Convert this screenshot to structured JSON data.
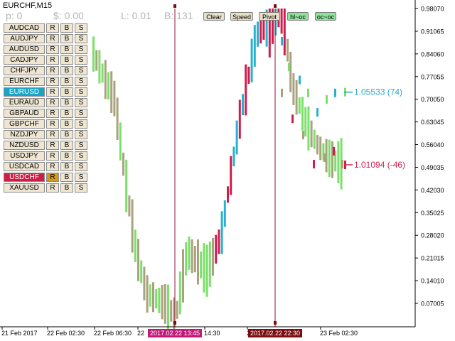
{
  "window": {
    "title": "EURCHF,M15"
  },
  "stats": {
    "p": "p: 0",
    "dollar": "$: 0.00",
    "l": "L: 0.01",
    "b": "B: 131"
  },
  "toolbar": [
    {
      "label": "Clear",
      "style": "beige"
    },
    {
      "label": "Speed",
      "style": "beige"
    },
    {
      "label": "Pivot",
      "style": "beige"
    },
    {
      "label": "hl~oc",
      "style": "green"
    },
    {
      "label": "oc~oc",
      "style": "green"
    }
  ],
  "symbols": [
    {
      "name": "AUDCAD",
      "state": ""
    },
    {
      "name": "AUDJPY",
      "state": ""
    },
    {
      "name": "AUDUSD",
      "state": ""
    },
    {
      "name": "CADJPY",
      "state": ""
    },
    {
      "name": "CHFJPY",
      "state": ""
    },
    {
      "name": "EURCHF",
      "state": ""
    },
    {
      "name": "EURUSD",
      "state": "blue"
    },
    {
      "name": "EURAUD",
      "state": ""
    },
    {
      "name": "GBPAUD",
      "state": ""
    },
    {
      "name": "GBPCHF",
      "state": ""
    },
    {
      "name": "NZDJPY",
      "state": ""
    },
    {
      "name": "NZDUSD",
      "state": ""
    },
    {
      "name": "USDJPY",
      "state": ""
    },
    {
      "name": "USDCAD",
      "state": ""
    },
    {
      "name": "USDCHF",
      "state": "red"
    },
    {
      "name": "XAUUSD",
      "state": ""
    }
  ],
  "row_buttons": {
    "r": "R",
    "b": "B",
    "s": "S"
  },
  "price_axis": {
    "labels": [
      "0.98070",
      "0.91065",
      "0.84060",
      "0.77055",
      "0.70050",
      "0.63045",
      "0.56040",
      "0.49035",
      "0.42030",
      "0.35025",
      "0.28020",
      "0.21015",
      "0.14010",
      "0.07005"
    ],
    "min": 0.0,
    "max": 0.9807
  },
  "time_axis": {
    "labels": [
      "21 Feb 2017",
      "22 Feb 02:30",
      "22 Feb 06:30",
      "22",
      "14:30",
      "22:30",
      "23 Feb 02:30"
    ]
  },
  "markers": [
    {
      "label": "2017.02.22 13:45",
      "color": "#c2187a"
    },
    {
      "label": "2017.02.22 22:30",
      "color": "#7a0e0e"
    }
  ],
  "series_labels": [
    {
      "text": "1.05533 (74)",
      "value": 0.7225,
      "color": "#2aa7c8"
    },
    {
      "text": "1.01094 (-46)",
      "value": 0.498,
      "color": "#d0254f"
    }
  ],
  "colors": {
    "up": "#7be06a",
    "down": "#a9a27e",
    "up_alt": "#2ab0d0",
    "down_alt": "#cf1e4d",
    "eurusd": "#2aa7c8",
    "usdchf": "#d0254f",
    "vline": "#9a1238"
  }
}
